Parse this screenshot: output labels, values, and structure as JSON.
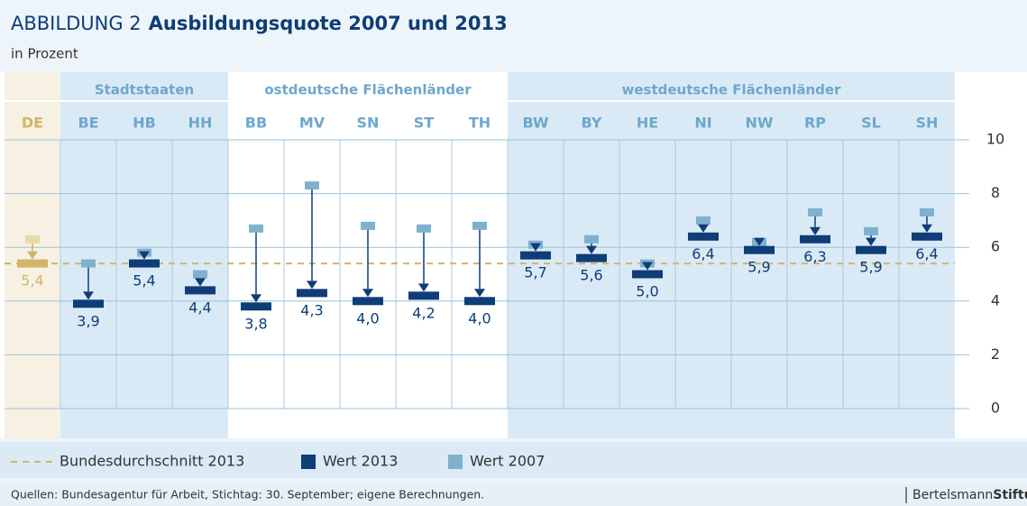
{
  "chart_data": {
    "type": "dumbbell",
    "title_prefix": "ABBILDUNG 2",
    "title": "Ausbildungsquote 2007 und 2013",
    "subtitle": "in Prozent",
    "groups": [
      "Stadtstaaten",
      "ostdeutsche Flächenländer",
      "westdeutsche Flächenländer"
    ],
    "categories": [
      "DE",
      "BE",
      "HB",
      "HH",
      "BB",
      "MV",
      "SN",
      "ST",
      "TH",
      "BW",
      "BY",
      "HE",
      "NI",
      "NW",
      "RP",
      "SL",
      "SH"
    ],
    "series": [
      {
        "name": "Wert 2013",
        "color": "#0e3d77",
        "highlight_color": "#d2b56a",
        "values": [
          5.4,
          3.9,
          5.4,
          4.4,
          3.8,
          4.3,
          4.0,
          4.2,
          4.0,
          5.7,
          5.6,
          5.0,
          6.4,
          5.9,
          6.3,
          5.9,
          6.4
        ],
        "value_labels": [
          "5,4",
          "3,9",
          "5,4",
          "4,4",
          "3,8",
          "4,3",
          "4,0",
          "4,2",
          "4,0",
          "5,7",
          "5,6",
          "5,0",
          "6,4",
          "5,9",
          "6,3",
          "5,9",
          "6,4"
        ]
      },
      {
        "name": "Wert 2007",
        "color": "#7fb1cf",
        "highlight_color": "#e8d9a8",
        "values": [
          6.3,
          5.4,
          5.8,
          5.0,
          6.7,
          8.3,
          6.8,
          6.7,
          6.8,
          6.1,
          6.3,
          5.4,
          7.0,
          6.2,
          7.3,
          6.6,
          7.3
        ]
      }
    ],
    "reference_line": {
      "name": "Bundesdurchschnitt 2013",
      "value": 5.4,
      "color": "#d2b56a"
    },
    "ylim": [
      0,
      10
    ],
    "yticks": [
      0,
      2,
      4,
      6,
      8,
      10
    ],
    "grid": true,
    "source": "Quellen: Bundesagentur für Arbeit, Stichtag: 30. September; eigene Berechnungen.",
    "logo": [
      "Bertelsmann",
      "Stiftung"
    ]
  }
}
